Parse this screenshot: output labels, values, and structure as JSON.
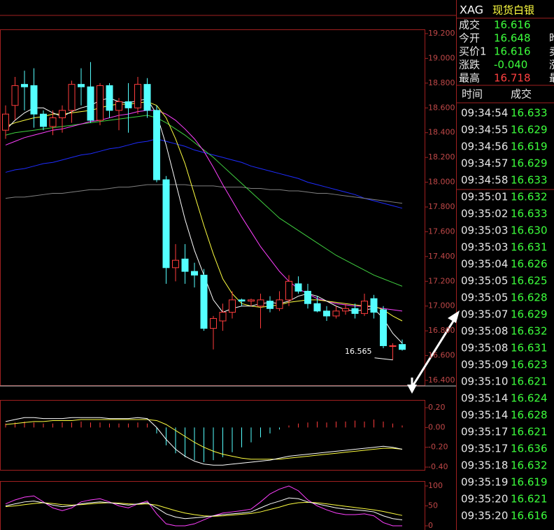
{
  "quote_header": {
    "symbol": "XAG",
    "name": "现货白银"
  },
  "quote": [
    {
      "label": "成交",
      "value": "16.616",
      "color": "#3cff3c"
    },
    {
      "label": "今开",
      "value": "16.648",
      "color": "#3cff3c"
    },
    {
      "label": "买价1",
      "value": "16.616",
      "color": "#3cff3c"
    },
    {
      "label": "涨跌",
      "value": "-0.040",
      "color": "#3cff3c"
    },
    {
      "label": "最高",
      "value": "16.718",
      "color": "#ff4040"
    }
  ],
  "quote_side": [
    "昨",
    "卖",
    "涨",
    "最"
  ],
  "ticks_table": {
    "headers": [
      "时间",
      "成交"
    ],
    "rows": [
      [
        "09:34:54",
        "16.633"
      ],
      [
        "09:34:55",
        "16.629"
      ],
      [
        "09:34:56",
        "16.619"
      ],
      [
        "09:34:57",
        "16.629"
      ],
      [
        "09:34:58",
        "16.633"
      ],
      [
        "09:35:01",
        "16.632"
      ],
      [
        "09:35:02",
        "16.633"
      ],
      [
        "09:35:03",
        "16.630"
      ],
      [
        "09:35:03",
        "16.631"
      ],
      [
        "09:35:04",
        "16.626"
      ],
      [
        "09:35:05",
        "16.625"
      ],
      [
        "09:35:05",
        "16.628"
      ],
      [
        "09:35:07",
        "16.629"
      ],
      [
        "09:35:08",
        "16.632"
      ],
      [
        "09:35:08",
        "16.631"
      ],
      [
        "09:35:09",
        "16.623"
      ],
      [
        "09:35:10",
        "16.621"
      ],
      [
        "09:35:14",
        "16.624"
      ],
      [
        "09:35:14",
        "16.628"
      ],
      [
        "09:35:17",
        "16.621"
      ],
      [
        "09:35:17",
        "16.636"
      ],
      [
        "09:35:18",
        "16.632"
      ],
      [
        "09:35:19",
        "16.619"
      ],
      [
        "09:35:20",
        "16.621"
      ],
      [
        "09:35:20",
        "16.616"
      ]
    ],
    "price_color": "#3cff3c"
  },
  "chart_data": [
    {
      "type": "candlestick",
      "ylim": [
        16.355,
        19.234
      ],
      "yticks": [
        {
          "value": 19.2,
          "label": "19.200"
        },
        {
          "value": 19.0,
          "label": "19.000"
        },
        {
          "value": 18.8,
          "label": "18.800"
        },
        {
          "value": 18.6,
          "label": "18.600"
        },
        {
          "value": 18.4,
          "label": "18.400"
        },
        {
          "value": 18.2,
          "label": "18.200"
        },
        {
          "value": 18.0,
          "label": "18.000"
        },
        {
          "value": 17.8,
          "label": "17.800"
        },
        {
          "value": 17.6,
          "label": "17.600"
        },
        {
          "value": 17.4,
          "label": "17.400"
        },
        {
          "value": 17.2,
          "label": "17.200"
        },
        {
          "value": 17.0,
          "label": "17.000"
        },
        {
          "value": 16.8,
          "label": "16.800"
        },
        {
          "value": 16.6,
          "label": "16.600"
        },
        {
          "value": 16.4,
          "label": "16.400"
        }
      ],
      "up_color": "#ff3c3c",
      "down_color": "#54ffff",
      "open": [
        18.42,
        18.62,
        18.79,
        18.78,
        18.55,
        18.45,
        18.52,
        18.58,
        18.79,
        18.77,
        18.5,
        18.78,
        18.58,
        18.65,
        18.6,
        18.79,
        18.58,
        18.02,
        17.31,
        17.38,
        17.28,
        17.25,
        16.82,
        16.88,
        16.95,
        17.05,
        17.04,
        17.0,
        17.04,
        16.98,
        17.05,
        17.18,
        17.12,
        17.02,
        16.96,
        16.92,
        16.96,
        16.98,
        16.94,
        17.06,
        16.97,
        16.68,
        16.69
      ],
      "high": [
        18.62,
        18.85,
        18.9,
        18.92,
        18.58,
        18.58,
        18.62,
        18.82,
        18.92,
        18.97,
        18.8,
        18.8,
        18.68,
        18.8,
        18.85,
        18.84,
        18.62,
        18.05,
        17.5,
        17.5,
        17.35,
        17.3,
        16.92,
        17.02,
        17.12,
        17.06,
        17.06,
        17.1,
        17.08,
        17.12,
        17.25,
        17.24,
        17.18,
        17.08,
        17.0,
        17.0,
        17.02,
        17.02,
        17.1,
        17.09,
        17.0,
        16.7,
        16.73
      ],
      "low": [
        18.35,
        18.5,
        18.58,
        18.44,
        18.42,
        18.38,
        18.4,
        18.48,
        18.62,
        18.48,
        18.46,
        18.52,
        18.42,
        18.4,
        18.55,
        18.52,
        18.0,
        17.18,
        17.2,
        17.18,
        17.15,
        16.8,
        16.65,
        16.8,
        16.9,
        17.0,
        17.0,
        16.82,
        16.95,
        16.96,
        17.0,
        17.1,
        16.98,
        16.95,
        16.88,
        16.9,
        16.93,
        16.9,
        16.92,
        16.9,
        16.66,
        16.565,
        16.64
      ],
      "close": [
        18.55,
        18.78,
        18.77,
        18.55,
        18.45,
        18.52,
        18.58,
        18.79,
        18.77,
        18.5,
        18.78,
        18.58,
        18.65,
        18.6,
        18.79,
        18.58,
        18.02,
        17.31,
        17.37,
        17.28,
        17.25,
        16.82,
        16.9,
        16.95,
        17.05,
        17.04,
        17.05,
        17.05,
        16.98,
        17.05,
        17.2,
        17.12,
        17.02,
        16.96,
        16.92,
        16.96,
        16.98,
        16.94,
        17.04,
        16.95,
        16.68,
        16.68,
        16.65
      ],
      "annotation": "16.565",
      "series": [
        {
          "color": "#1e2cff",
          "values": [
            18.08,
            18.1,
            18.11,
            18.13,
            18.15,
            18.16,
            18.18,
            18.2,
            18.22,
            18.23,
            18.25,
            18.27,
            18.28,
            18.3,
            18.32,
            18.33,
            18.35,
            18.33,
            18.31,
            18.29,
            18.26,
            18.24,
            18.22,
            18.2,
            18.18,
            18.16,
            18.13,
            18.11,
            18.09,
            18.07,
            18.05,
            18.03,
            18.0,
            17.98,
            17.96,
            17.94,
            17.92,
            17.9,
            17.87,
            17.85,
            17.83,
            17.81,
            17.79
          ]
        },
        {
          "color": "#808080",
          "values": [
            17.87,
            17.88,
            17.88,
            17.89,
            17.9,
            17.91,
            17.91,
            17.92,
            17.93,
            17.94,
            17.94,
            17.95,
            17.96,
            17.96,
            17.97,
            17.98,
            17.98,
            17.98,
            17.98,
            17.98,
            17.97,
            17.97,
            17.97,
            17.96,
            17.96,
            17.96,
            17.95,
            17.95,
            17.94,
            17.94,
            17.93,
            17.93,
            17.92,
            17.91,
            17.91,
            17.9,
            17.89,
            17.88,
            17.87,
            17.86,
            17.85,
            17.84,
            17.83
          ]
        },
        {
          "color": "#40d040",
          "values": [
            18.38,
            18.4,
            18.41,
            18.42,
            18.43,
            18.44,
            18.45,
            18.46,
            18.47,
            18.48,
            18.49,
            18.5,
            18.51,
            18.52,
            18.53,
            18.54,
            18.52,
            18.48,
            18.43,
            18.38,
            18.32,
            18.26,
            18.2,
            18.13,
            18.06,
            17.99,
            17.92,
            17.85,
            17.78,
            17.71,
            17.66,
            17.61,
            17.56,
            17.51,
            17.46,
            17.41,
            17.37,
            17.33,
            17.29,
            17.25,
            17.22,
            17.19,
            17.16
          ]
        },
        {
          "color": "#ff40ff",
          "values": [
            18.3,
            18.33,
            18.36,
            18.38,
            18.4,
            18.42,
            18.43,
            18.45,
            18.47,
            18.49,
            18.5,
            18.52,
            18.54,
            18.55,
            18.57,
            18.58,
            18.58,
            18.55,
            18.5,
            18.43,
            18.35,
            18.25,
            18.12,
            17.98,
            17.85,
            17.72,
            17.6,
            17.48,
            17.38,
            17.28,
            17.2,
            17.14,
            17.1,
            17.06,
            17.04,
            17.02,
            17.01,
            17.0,
            17.0,
            16.99,
            16.98,
            16.97,
            16.96
          ]
        },
        {
          "color": "#ffff40",
          "values": [
            18.45,
            18.48,
            18.5,
            18.52,
            18.53,
            18.55,
            18.55,
            18.56,
            18.57,
            18.58,
            18.6,
            18.62,
            18.63,
            18.63,
            18.64,
            18.65,
            18.62,
            18.52,
            18.35,
            18.15,
            17.9,
            17.65,
            17.42,
            17.22,
            17.1,
            17.02,
            17.0,
            16.99,
            17.0,
            17.01,
            17.03,
            17.04,
            17.05,
            17.05,
            17.04,
            17.03,
            17.02,
            17.01,
            17.0,
            17.0,
            16.97,
            16.92,
            16.88
          ]
        },
        {
          "color": "#ffffff",
          "values": [
            18.42,
            18.5,
            18.56,
            18.6,
            18.6,
            18.56,
            18.53,
            18.57,
            18.6,
            18.62,
            18.66,
            18.68,
            18.65,
            18.64,
            18.66,
            18.67,
            18.55,
            18.3,
            18.0,
            17.7,
            17.45,
            17.25,
            17.05,
            16.95,
            16.98,
            17.0,
            17.0,
            17.02,
            17.03,
            17.02,
            17.04,
            17.08,
            17.1,
            17.08,
            17.04,
            17.0,
            16.97,
            16.96,
            16.97,
            16.98,
            16.9,
            16.78,
            16.7
          ]
        }
      ]
    },
    {
      "type": "macd",
      "ylim": [
        -0.428,
        0.278
      ],
      "yticks": [
        {
          "value": 0.2,
          "label": "0.20"
        },
        {
          "value": 0,
          "label": "0.00"
        },
        {
          "value": -0.2,
          "label": "-0.20"
        },
        {
          "value": -0.4,
          "label": "-0.40"
        }
      ],
      "pos_color": "#ff3c3c",
      "neg_color": "#54ffff",
      "histogram": [
        0.04,
        0.05,
        0.06,
        0.05,
        0.04,
        0.04,
        0.05,
        0.05,
        0.06,
        0.05,
        0.05,
        0.04,
        0.04,
        0.04,
        0.05,
        0.04,
        -0.06,
        -0.18,
        -0.26,
        -0.3,
        -0.33,
        -0.35,
        -0.33,
        -0.3,
        -0.25,
        -0.2,
        -0.15,
        -0.1,
        -0.06,
        -0.02,
        0.02,
        0.04,
        0.05,
        0.06,
        0.05,
        0.06,
        0.06,
        0.07,
        0.06,
        0.08,
        0.06,
        0.04,
        0.02
      ],
      "series": [
        {
          "color": "#ffff40",
          "values": [
            0.03,
            0.04,
            0.05,
            0.06,
            0.06,
            0.07,
            0.07,
            0.07,
            0.08,
            0.08,
            0.08,
            0.08,
            0.08,
            0.08,
            0.08,
            0.08,
            0.07,
            0.03,
            -0.03,
            -0.09,
            -0.15,
            -0.2,
            -0.24,
            -0.27,
            -0.29,
            -0.31,
            -0.32,
            -0.32,
            -0.32,
            -0.32,
            -0.31,
            -0.3,
            -0.29,
            -0.28,
            -0.27,
            -0.26,
            -0.25,
            -0.24,
            -0.23,
            -0.22,
            -0.21,
            -0.21,
            -0.22
          ]
        },
        {
          "color": "#ffffff",
          "values": [
            0.06,
            0.08,
            0.1,
            0.1,
            0.09,
            0.09,
            0.09,
            0.1,
            0.1,
            0.1,
            0.1,
            0.09,
            0.09,
            0.09,
            0.1,
            0.09,
            0.0,
            -0.12,
            -0.22,
            -0.29,
            -0.34,
            -0.37,
            -0.38,
            -0.38,
            -0.37,
            -0.36,
            -0.35,
            -0.34,
            -0.33,
            -0.31,
            -0.29,
            -0.28,
            -0.27,
            -0.26,
            -0.25,
            -0.24,
            -0.23,
            -0.22,
            -0.21,
            -0.2,
            -0.19,
            -0.2,
            -0.22
          ]
        }
      ]
    },
    {
      "type": "kdj",
      "ylim": [
        -10.5,
        112.3
      ],
      "yticks": [
        100,
        50,
        0
      ],
      "series": [
        {
          "color": "#ff40ff",
          "values": [
            55,
            65,
            72,
            75,
            60,
            45,
            38,
            45,
            60,
            65,
            68,
            60,
            50,
            45,
            55,
            62,
            30,
            5,
            0,
            0,
            5,
            15,
            25,
            32,
            35,
            38,
            42,
            60,
            80,
            92,
            100,
            88,
            65,
            50,
            40,
            32,
            28,
            28,
            30,
            25,
            8,
            0,
            0
          ]
        },
        {
          "color": "#ffff40",
          "values": [
            48,
            50,
            53,
            56,
            58,
            56,
            53,
            52,
            53,
            55,
            57,
            58,
            57,
            55,
            54,
            55,
            52,
            45,
            38,
            32,
            28,
            25,
            24,
            25,
            27,
            29,
            31,
            35,
            41,
            47,
            54,
            58,
            59,
            58,
            55,
            52,
            49,
            46,
            43,
            40,
            36,
            31,
            26
          ]
        },
        {
          "color": "#ffffff",
          "values": [
            50,
            55,
            60,
            62,
            58,
            52,
            48,
            50,
            55,
            58,
            60,
            58,
            55,
            52,
            55,
            58,
            45,
            30,
            22,
            18,
            20,
            22,
            25,
            28,
            30,
            32,
            35,
            45,
            55,
            62,
            70,
            68,
            60,
            55,
            50,
            45,
            42,
            40,
            38,
            35,
            25,
            18,
            15
          ]
        }
      ]
    }
  ]
}
